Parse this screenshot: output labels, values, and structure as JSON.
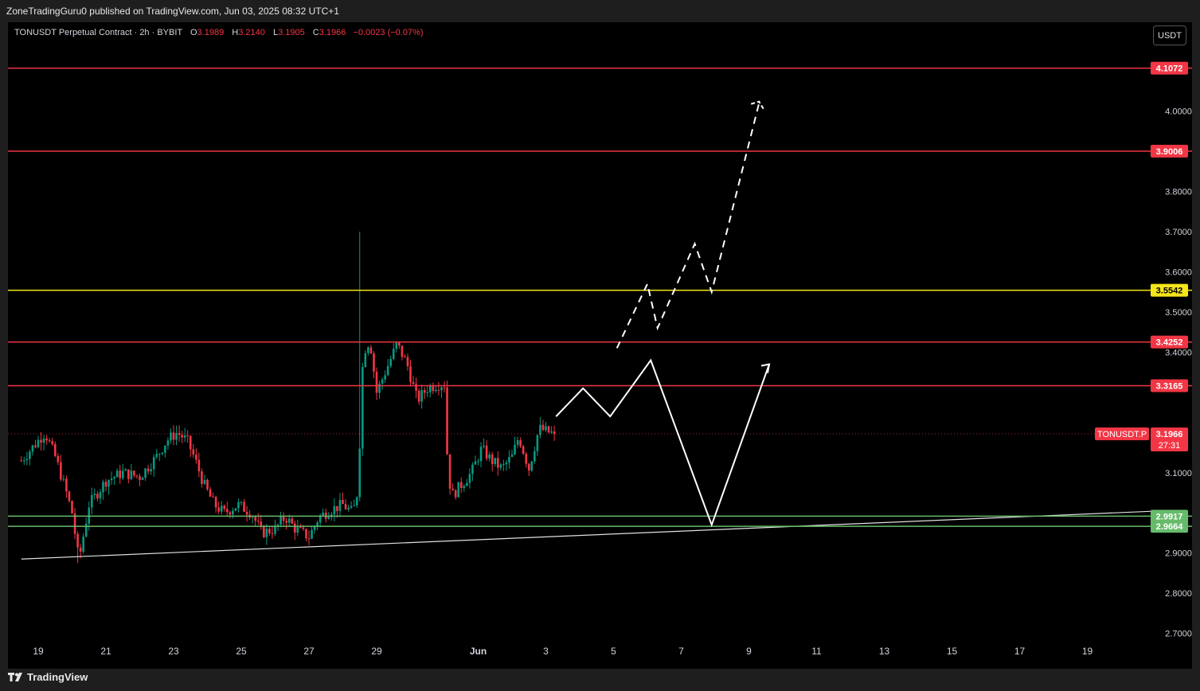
{
  "header": {
    "publish_line": "ZoneTradingGuru0 published on TradingView.com, Jun 03, 2025 08:32 UTC+1"
  },
  "legend": {
    "symbol": "TONUSDT Perpetual Contract · 2h · BYBIT",
    "open_label": "O",
    "open": "3.1989",
    "high_label": "H",
    "high": "3.2140",
    "low_label": "L",
    "low": "3.1905",
    "close_label": "C",
    "close": "3.1966",
    "change": "−0.0023 (−0.07%)"
  },
  "currency_button": "USDT",
  "footer": {
    "brand": "TradingView"
  },
  "colors": {
    "up": "#089981",
    "down": "#f23645",
    "resistance": "#f23645",
    "pivot": "#f5e51b",
    "support": "#66bb6a",
    "projection": "#ffffff",
    "background": "#000000"
  },
  "chart_data": {
    "type": "candlestick",
    "symbol": "TONUSDT",
    "interval": "2h",
    "y_axis": {
      "range": [
        2.67,
        4.18
      ],
      "ticks": [
        "4.0000",
        "3.8000",
        "3.7000",
        "3.6000",
        "3.5000",
        "3.4000",
        "3.1000",
        "2.9000",
        "2.8000",
        "2.7000"
      ]
    },
    "x_axis": {
      "range_days": [
        18.5,
        22.0
      ],
      "ticks": [
        {
          "day": 19,
          "label": "19"
        },
        {
          "day": 21,
          "label": "21"
        },
        {
          "day": 23,
          "label": "23"
        },
        {
          "day": 25,
          "label": "25"
        },
        {
          "day": 27,
          "label": "27"
        },
        {
          "day": 29,
          "label": "29"
        },
        {
          "day": 32,
          "label": "Jun"
        },
        {
          "day": 34,
          "label": "3"
        },
        {
          "day": 36,
          "label": "5"
        },
        {
          "day": 38,
          "label": "7"
        },
        {
          "day": 40,
          "label": "9"
        },
        {
          "day": 42,
          "label": "11"
        },
        {
          "day": 44,
          "label": "13"
        },
        {
          "day": 46,
          "label": "15"
        },
        {
          "day": 48,
          "label": "17"
        },
        {
          "day": 50,
          "label": "19"
        }
      ]
    },
    "price_path": [
      [
        18.5,
        3.13
      ],
      [
        18.9,
        3.17
      ],
      [
        19.2,
        3.2
      ],
      [
        19.5,
        3.14
      ],
      [
        19.8,
        3.06
      ],
      [
        20.0,
        3.0
      ],
      [
        20.2,
        2.88
      ],
      [
        20.5,
        3.02
      ],
      [
        21.0,
        3.08
      ],
      [
        21.5,
        3.1
      ],
      [
        22.0,
        3.09
      ],
      [
        22.5,
        3.14
      ],
      [
        22.8,
        3.18
      ],
      [
        23.1,
        3.2
      ],
      [
        23.4,
        3.18
      ],
      [
        23.6,
        3.14
      ],
      [
        23.9,
        3.07
      ],
      [
        24.2,
        3.02
      ],
      [
        24.5,
        3.0
      ],
      [
        24.9,
        3.02
      ],
      [
        25.3,
        3.0
      ],
      [
        25.6,
        2.95
      ],
      [
        26.0,
        2.96
      ],
      [
        26.3,
        2.99
      ],
      [
        26.6,
        2.96
      ],
      [
        27.0,
        2.94
      ],
      [
        27.3,
        2.99
      ],
      [
        27.7,
        3.01
      ],
      [
        28.0,
        3.02
      ],
      [
        28.3,
        3.0
      ],
      [
        28.45,
        3.06
      ],
      [
        28.6,
        3.4
      ],
      [
        28.8,
        3.43
      ],
      [
        29.0,
        3.3
      ],
      [
        29.2,
        3.34
      ],
      [
        29.4,
        3.38
      ],
      [
        29.6,
        3.42
      ],
      [
        29.9,
        3.37
      ],
      [
        30.2,
        3.28
      ],
      [
        30.5,
        3.31
      ],
      [
        30.8,
        3.32
      ],
      [
        31.0,
        3.32
      ],
      [
        31.05,
        3.18
      ],
      [
        31.2,
        3.04
      ],
      [
        31.5,
        3.07
      ],
      [
        31.8,
        3.1
      ],
      [
        32.1,
        3.16
      ],
      [
        32.4,
        3.13
      ],
      [
        32.7,
        3.11
      ],
      [
        33.0,
        3.14
      ],
      [
        33.2,
        3.19
      ],
      [
        33.5,
        3.11
      ],
      [
        33.8,
        3.21
      ],
      [
        34.1,
        3.2
      ],
      [
        34.25,
        3.1966
      ]
    ],
    "horizontal_levels": [
      {
        "price": 4.1072,
        "label": "4.1072",
        "kind": "resistance"
      },
      {
        "price": 3.9006,
        "label": "3.9006",
        "kind": "resistance"
      },
      {
        "price": 3.5542,
        "label": "3.5542",
        "kind": "pivot"
      },
      {
        "price": 3.4252,
        "label": "3.4252",
        "kind": "resistance"
      },
      {
        "price": 3.3165,
        "label": "3.3165",
        "kind": "resistance"
      },
      {
        "price": 2.9917,
        "label": "2.9917",
        "kind": "support"
      },
      {
        "price": 2.9664,
        "label": "2.9664",
        "kind": "support"
      }
    ],
    "trendline": {
      "from": [
        18.5,
        2.885
      ],
      "to": [
        52.2,
        3.005
      ]
    },
    "last_price": {
      "symbol_label": "TONUSDT.P",
      "price": "3.1966",
      "countdown": "27:31"
    },
    "projection_solid": [
      [
        34.3,
        3.24
      ],
      [
        35.1,
        3.31
      ],
      [
        35.9,
        3.24
      ],
      [
        37.1,
        3.38
      ],
      [
        38.9,
        2.97
      ],
      [
        40.6,
        3.37
      ]
    ],
    "projection_dashed": [
      [
        36.1,
        3.41
      ],
      [
        37.0,
        3.57
      ],
      [
        37.3,
        3.46
      ],
      [
        38.4,
        3.67
      ],
      [
        38.9,
        3.55
      ],
      [
        40.3,
        4.02
      ]
    ]
  }
}
